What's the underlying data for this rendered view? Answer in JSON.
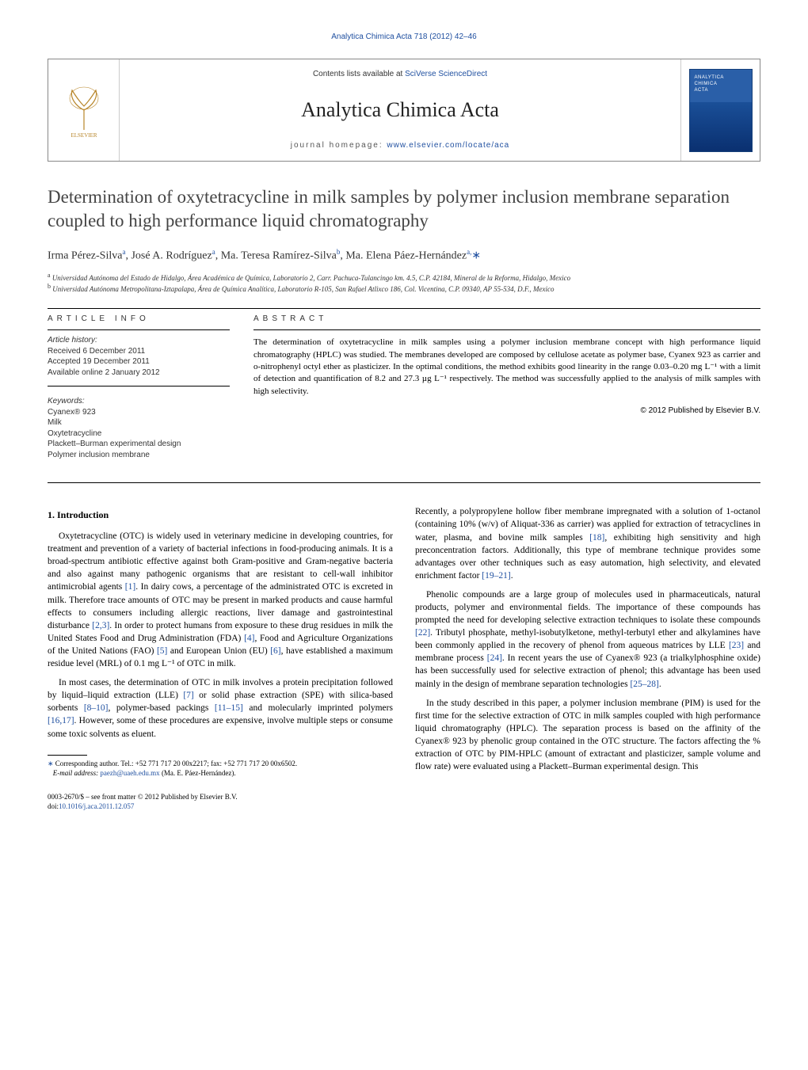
{
  "header": {
    "citation": "Analytica Chimica Acta 718 (2012) 42–46",
    "contents_prefix": "Contents lists available at ",
    "contents_link_text": "SciVerse ScienceDirect",
    "journal_title": "Analytica Chimica Acta",
    "homepage_prefix": "journal homepage: ",
    "homepage_link_text": "www.elsevier.com/locate/aca"
  },
  "article": {
    "title": "Determination of oxytetracycline in milk samples by polymer inclusion membrane separation coupled to high performance liquid chromatography",
    "authors_html": "Irma Pérez-Silva<sup>a</sup>, José A. Rodríguez<sup>a</sup>, Ma. Teresa Ramírez-Silva<sup>b</sup>, Ma. Elena Páez-Hernández<sup>a,</sup><span class='corr-star'>∗</span>",
    "affiliations": {
      "a": "Universidad Autónoma del Estado de Hidalgo, Área Académica de Química, Laboratorio 2, Carr. Pachuca-Tulancingo km. 4.5, C.P. 42184, Mineral de la Reforma, Hidalgo, Mexico",
      "b": "Universidad Autónoma Metropolitana-Iztapalapa, Área de Química Analítica, Laboratorio R-105, San Rafael Atlixco 186, Col. Vicentina, C.P. 09340, AP 55-534, D.F., Mexico"
    }
  },
  "info": {
    "label": "ARTICLE INFO",
    "history_head": "Article history:",
    "received": "Received 6 December 2011",
    "accepted": "Accepted 19 December 2011",
    "online": "Available online 2 January 2012",
    "keywords_head": "Keywords:",
    "keywords": [
      "Cyanex® 923",
      "Milk",
      "Oxytetracycline",
      "Plackett–Burman experimental design",
      "Polymer inclusion membrane"
    ]
  },
  "abstract": {
    "label": "ABSTRACT",
    "text": "The determination of oxytetracycline in milk samples using a polymer inclusion membrane concept with high performance liquid chromatography (HPLC) was studied. The membranes developed are composed by cellulose acetate as polymer base, Cyanex 923 as carrier and o-nitrophenyl octyl ether as plasticizer. In the optimal conditions, the method exhibits good linearity in the range 0.03–0.20 mg L⁻¹ with a limit of detection and quantification of 8.2 and 27.3 µg L⁻¹ respectively. The method was successfully applied to the analysis of milk samples with high selectivity.",
    "copyright": "© 2012 Published by Elsevier B.V."
  },
  "body": {
    "intro_heading": "1. Introduction",
    "p1": "Oxytetracycline (OTC) is widely used in veterinary medicine in developing countries, for treatment and prevention of a variety of bacterial infections in food-producing animals. It is a broad-spectrum antibiotic effective against both Gram-positive and Gram-negative bacteria and also against many pathogenic organisms that are resistant to cell-wall inhibitor antimicrobial agents [1]. In dairy cows, a percentage of the administrated OTC is excreted in milk. Therefore trace amounts of OTC may be present in marked products and cause harmful effects to consumers including allergic reactions, liver damage and gastrointestinal disturbance [2,3]. In order to protect humans from exposure to these drug residues in milk the United States Food and Drug Administration (FDA) [4], Food and Agriculture Organizations of the United Nations (FAO) [5] and European Union (EU) [6], have established a maximum residue level (MRL) of 0.1 mg L⁻¹ of OTC in milk.",
    "p2": "In most cases, the determination of OTC in milk involves a protein precipitation followed by liquid–liquid extraction (LLE) [7] or solid phase extraction (SPE) with silica-based sorbents [8–10], polymer-based packings [11–15] and molecularly imprinted polymers [16,17]. However, some of these procedures are expensive, involve multiple steps or consume some toxic solvents as eluent.",
    "p3": "Recently, a polypropylene hollow fiber membrane impregnated with a solution of 1-octanol (containing 10% (w/v) of Aliquat-336 as carrier) was applied for extraction of tetracyclines in water, plasma, and bovine milk samples [18], exhibiting high sensitivity and high preconcentration factors. Additionally, this type of membrane technique provides some advantages over other techniques such as easy automation, high selectivity, and elevated enrichment factor [19–21].",
    "p4": "Phenolic compounds are a large group of molecules used in pharmaceuticals, natural products, polymer and environmental fields. The importance of these compounds has prompted the need for developing selective extraction techniques to isolate these compounds [22]. Tributyl phosphate, methyl-isobutylketone, methyl-terbutyl ether and alkylamines have been commonly applied in the recovery of phenol from aqueous matrices by LLE [23] and membrane process [24]. In recent years the use of Cyanex® 923 (a trialkylphosphine oxide) has been successfully used for selective extraction of phenol; this advantage has been used mainly in the design of membrane separation technologies [25–28].",
    "p5": "In the study described in this paper, a polymer inclusion membrane (PIM) is used for the first time for the selective extraction of OTC in milk samples coupled with high performance liquid chromatography (HPLC). The separation process is based on the affinity of the Cyanex® 923 by phenolic group contained in the OTC structure. The factors affecting the % extraction of OTC by PIM-HPLC (amount of extractant and plasticizer, sample volume and flow rate) were evaluated using a Plackett–Burman experimental design. This"
  },
  "footnote": {
    "corr": "Corresponding author. Tel.: +52 771 717 20 00x2217; fax: +52 771 717 20 00x6502.",
    "email_label": "E-mail address:",
    "email": "paezh@uaeh.edu.mx",
    "email_who": "(Ma. E. Páez-Hernández)."
  },
  "footer": {
    "issn_line": "0003-2670/$ – see front matter © 2012 Published by Elsevier B.V.",
    "doi_prefix": "doi:",
    "doi": "10.1016/j.aca.2011.12.057"
  },
  "refs": {
    "r1": "[1]",
    "r23": "[2,3]",
    "r4": "[4]",
    "r5": "[5]",
    "r6": "[6]",
    "r7": "[7]",
    "r810": "[8–10]",
    "r1115": "[11–15]",
    "r1617": "[16,17]",
    "r18": "[18]",
    "r1921": "[19–21]",
    "r22": "[22]",
    "r23b": "[23]",
    "r24": "[24]",
    "r2528": "[25–28]"
  },
  "colors": {
    "link": "#2050a0",
    "text": "#000000",
    "rule": "#000000"
  }
}
